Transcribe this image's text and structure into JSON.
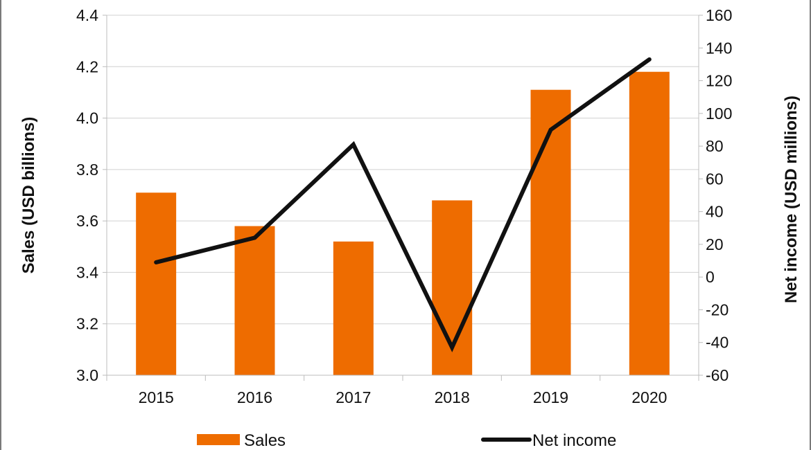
{
  "chart_data": {
    "type": "bar",
    "categories": [
      "2015",
      "2016",
      "2017",
      "2018",
      "2019",
      "2020"
    ],
    "series": [
      {
        "name": "Sales",
        "type": "bar",
        "axis": "left",
        "values": [
          3.71,
          3.58,
          3.52,
          3.68,
          4.11,
          4.18
        ],
        "color": "#ee6c00"
      },
      {
        "name": "Net income",
        "type": "line",
        "axis": "right",
        "values": [
          9,
          24,
          81,
          -43,
          90,
          133
        ],
        "color": "#111111"
      }
    ],
    "ylabel": "Sales (USD billions)",
    "y2label": "Net income (USD millions)",
    "ylim": [
      3.0,
      4.4
    ],
    "y2lim": [
      -60,
      160
    ],
    "yticks": [
      "3.0",
      "3.2",
      "3.4",
      "3.6",
      "3.8",
      "4.0",
      "4.2",
      "4.4"
    ],
    "y2ticks": [
      "-60",
      "-40",
      "-20",
      "0",
      "20",
      "40",
      "60",
      "80",
      "100",
      "120",
      "140",
      "160"
    ],
    "grid": true,
    "legend_position": "bottom"
  }
}
